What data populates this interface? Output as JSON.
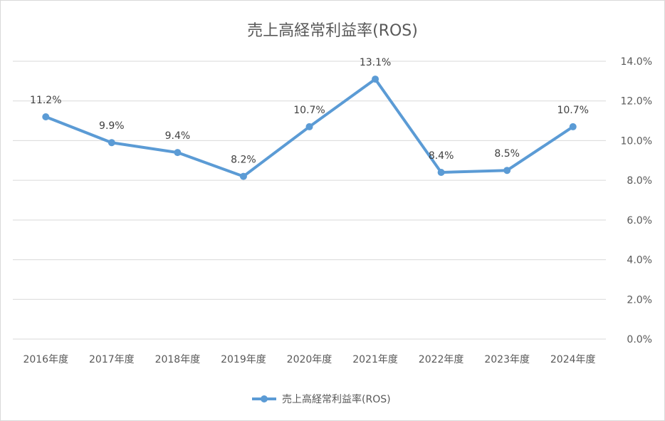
{
  "chart_data": {
    "type": "line",
    "title": "売上高経常利益率(ROS)",
    "categories": [
      "2016年度",
      "2017年度",
      "2018年度",
      "2019年度",
      "2020年度",
      "2021年度",
      "2022年度",
      "2023年度",
      "2024年度"
    ],
    "series": [
      {
        "name": "売上高経常利益率(ROS)",
        "values": [
          11.2,
          9.9,
          9.4,
          8.2,
          10.7,
          13.1,
          8.4,
          8.5,
          10.7
        ],
        "data_labels": [
          "11.2%",
          "9.9%",
          "9.4%",
          "8.2%",
          "10.7%",
          "13.1%",
          "8.4%",
          "8.5%",
          "10.7%"
        ],
        "color": "#5b9bd5"
      }
    ],
    "y_axis_position": "right",
    "ylim": [
      0,
      14
    ],
    "yticks": [
      0,
      2,
      4,
      6,
      8,
      10,
      12,
      14
    ],
    "ytick_labels": [
      "0.0%",
      "2.0%",
      "4.0%",
      "6.0%",
      "8.0%",
      "10.0%",
      "12.0%",
      "14.0%"
    ],
    "grid": true,
    "legend_position": "bottom",
    "gridline_color": "#d9d9d9",
    "text_color": "#595959"
  }
}
